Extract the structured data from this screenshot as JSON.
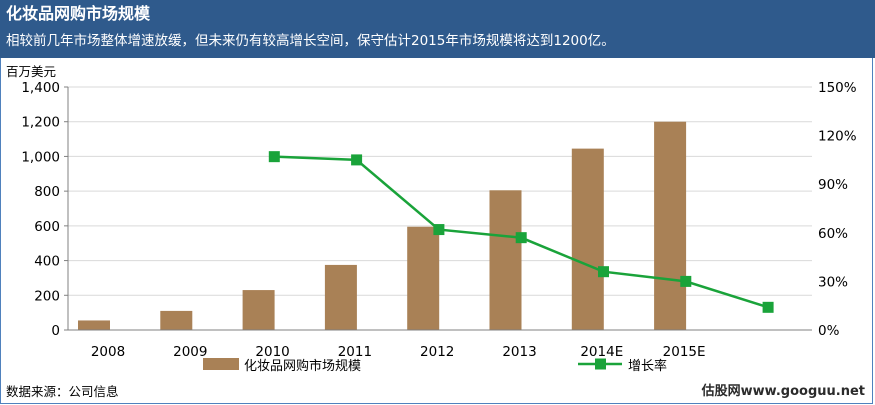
{
  "header": {
    "title": "化妆品网购市场规模",
    "subtitle": "相较前几年市场整体增速放缓，但未来仍有较高增长空间，保守估计2015年市场规模将达到1200亿。"
  },
  "footer": {
    "source": "数据来源：公司信息",
    "watermark": "估股网www.googuu.net"
  },
  "colors": {
    "header_bg": "#2f5a8c",
    "bar": "#a98156",
    "line": "#1aa33a",
    "marker": "#1aa33a",
    "grid": "#d9d9d9"
  },
  "chart_data": {
    "type": "bar",
    "title": "",
    "categories": [
      "2008",
      "2009",
      "2010",
      "2011",
      "2012",
      "2013",
      "2014E",
      "2015E"
    ],
    "ylabel": "百万美元",
    "ylim": [
      0,
      1400
    ],
    "yticks": [
      "0",
      "200",
      "400",
      "600",
      "800",
      "1,000",
      "1,200",
      "1,400"
    ],
    "y2lim": [
      0,
      150
    ],
    "y2ticks": [
      "0%",
      "30%",
      "60%",
      "90%",
      "120%",
      "150%"
    ],
    "grid": true,
    "legend_position": "bottom",
    "series": [
      {
        "name": "化妆品网购市场规模",
        "type": "bar",
        "axis": "left",
        "values": [
          55,
          110,
          230,
          375,
          595,
          805,
          1045,
          1200
        ]
      },
      {
        "name": "增长率",
        "type": "line",
        "axis": "right",
        "values": [
          null,
          107,
          105,
          62,
          57,
          36,
          30,
          14
        ]
      }
    ]
  }
}
